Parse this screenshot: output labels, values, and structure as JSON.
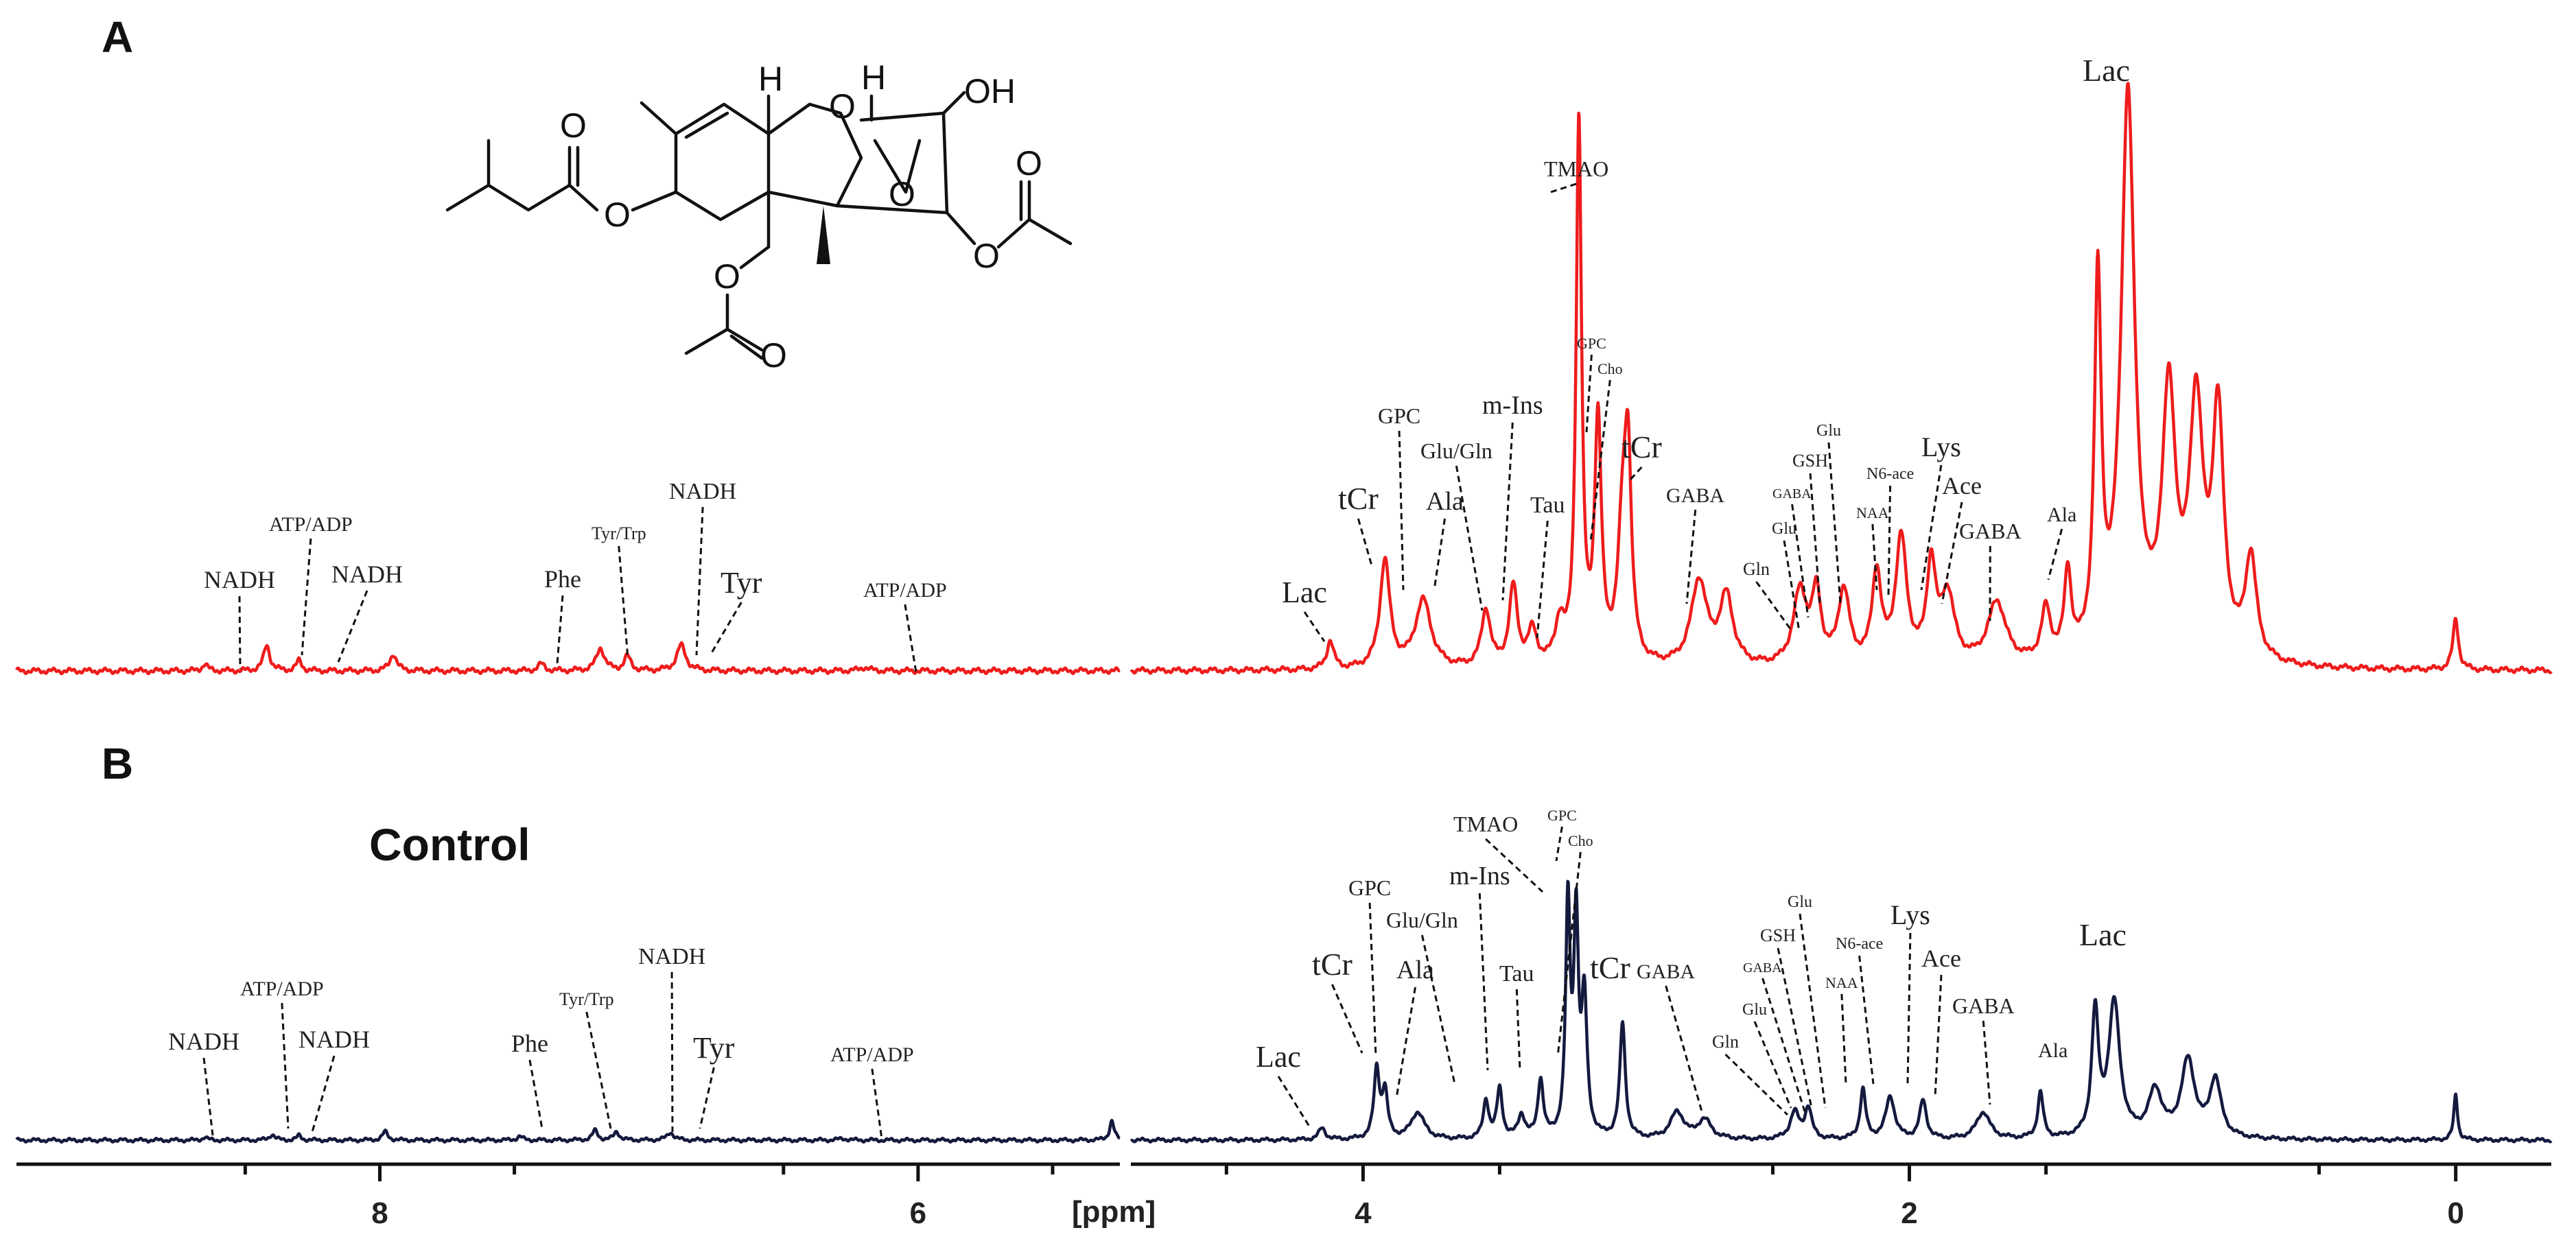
{
  "panels": {
    "a": {
      "letter": "A"
    },
    "b": {
      "letter": "B",
      "title": "Control"
    }
  },
  "structure": {
    "atoms": {
      "oh": "OH",
      "h1": "H",
      "h2": "H",
      "o_ring": "O",
      "o_ester": "O",
      "o_carb": "O",
      "o_epox": "O",
      "o_ac1": "O",
      "o_ac1c": "O",
      "o_ac2": "O",
      "o_ac2c": "O"
    }
  },
  "axis": {
    "unit": "[ppm]",
    "ticks": [
      8,
      6,
      4,
      2,
      0
    ]
  },
  "chart_data": [
    {
      "type": "line",
      "panel": "A",
      "name": "",
      "color": "#ee1c1c",
      "x_reversed": true,
      "x_unit": "ppm",
      "segments": [
        [
          9.35,
          5.25
        ],
        [
          4.85,
          -0.35
        ]
      ],
      "peaks": [
        {
          "x": 8.65,
          "h": 0.012,
          "w": 0.012
        },
        {
          "x": 8.42,
          "h": 0.045,
          "w": 0.014
        },
        {
          "x": 8.3,
          "h": 0.018,
          "w": 0.012
        },
        {
          "x": 7.95,
          "h": 0.03,
          "w": 0.015
        },
        {
          "x": 7.4,
          "h": 0.012,
          "w": 0.015
        },
        {
          "x": 7.18,
          "h": 0.04,
          "w": 0.018
        },
        {
          "x": 7.08,
          "h": 0.025,
          "w": 0.015
        },
        {
          "x": 6.88,
          "h": 0.045,
          "w": 0.02
        },
        {
          "x": 6.2,
          "h": 0.006,
          "w": 0.02
        },
        {
          "x": 4.12,
          "h": 0.05,
          "w": 0.015
        },
        {
          "x": 3.92,
          "h": 0.19,
          "w": 0.022
        },
        {
          "x": 3.78,
          "h": 0.12,
          "w": 0.035
        },
        {
          "x": 3.55,
          "h": 0.1,
          "w": 0.02
        },
        {
          "x": 3.45,
          "h": 0.14,
          "w": 0.018
        },
        {
          "x": 3.38,
          "h": 0.06,
          "w": 0.02
        },
        {
          "x": 3.28,
          "h": 0.07,
          "w": 0.02
        },
        {
          "x": 3.21,
          "h": 0.95,
          "w": 0.012
        },
        {
          "x": 3.14,
          "h": 0.42,
          "w": 0.015
        },
        {
          "x": 3.05,
          "h": 0.22,
          "w": 0.02
        },
        {
          "x": 3.03,
          "h": 0.33,
          "w": 0.015
        },
        {
          "x": 2.77,
          "h": 0.15,
          "w": 0.035
        },
        {
          "x": 2.67,
          "h": 0.12,
          "w": 0.03
        },
        {
          "x": 2.4,
          "h": 0.13,
          "w": 0.03
        },
        {
          "x": 2.34,
          "h": 0.12,
          "w": 0.02
        },
        {
          "x": 2.24,
          "h": 0.13,
          "w": 0.025
        },
        {
          "x": 2.12,
          "h": 0.16,
          "w": 0.02
        },
        {
          "x": 2.03,
          "h": 0.22,
          "w": 0.025
        },
        {
          "x": 1.92,
          "h": 0.17,
          "w": 0.02
        },
        {
          "x": 1.86,
          "h": 0.12,
          "w": 0.03
        },
        {
          "x": 1.68,
          "h": 0.11,
          "w": 0.04
        },
        {
          "x": 1.5,
          "h": 0.09,
          "w": 0.02
        },
        {
          "x": 1.42,
          "h": 0.15,
          "w": 0.015
        },
        {
          "x": 1.31,
          "h": 0.65,
          "w": 0.015
        },
        {
          "x": 1.2,
          "h": 0.99,
          "w": 0.03
        },
        {
          "x": 1.05,
          "h": 0.45,
          "w": 0.03
        },
        {
          "x": 0.95,
          "h": 0.43,
          "w": 0.03
        },
        {
          "x": 0.87,
          "h": 0.42,
          "w": 0.025
        },
        {
          "x": 0.75,
          "h": 0.18,
          "w": 0.025
        },
        {
          "x": 0.0,
          "h": 0.09,
          "w": 0.012
        }
      ]
    },
    {
      "type": "line",
      "panel": "B",
      "name": "Control",
      "color": "#141a3e",
      "x_reversed": true,
      "x_unit": "ppm",
      "segments": [
        [
          9.35,
          5.25
        ],
        [
          4.85,
          -0.35
        ]
      ],
      "peaks": [
        {
          "x": 8.65,
          "h": 0.008,
          "w": 0.01
        },
        {
          "x": 8.4,
          "h": 0.015,
          "w": 0.012
        },
        {
          "x": 8.3,
          "h": 0.012,
          "w": 0.01
        },
        {
          "x": 7.98,
          "h": 0.022,
          "w": 0.012
        },
        {
          "x": 7.48,
          "h": 0.01,
          "w": 0.012
        },
        {
          "x": 7.2,
          "h": 0.025,
          "w": 0.012
        },
        {
          "x": 7.12,
          "h": 0.022,
          "w": 0.012
        },
        {
          "x": 6.92,
          "h": 0.02,
          "w": 0.015
        },
        {
          "x": 6.28,
          "h": 0.004,
          "w": 0.02
        },
        {
          "x": 5.28,
          "h": 0.05,
          "w": 0.01
        },
        {
          "x": 4.15,
          "h": 0.03,
          "w": 0.015
        },
        {
          "x": 3.95,
          "h": 0.18,
          "w": 0.012
        },
        {
          "x": 3.92,
          "h": 0.12,
          "w": 0.012
        },
        {
          "x": 3.8,
          "h": 0.07,
          "w": 0.03
        },
        {
          "x": 3.55,
          "h": 0.1,
          "w": 0.012
        },
        {
          "x": 3.5,
          "h": 0.13,
          "w": 0.012
        },
        {
          "x": 3.42,
          "h": 0.06,
          "w": 0.015
        },
        {
          "x": 3.35,
          "h": 0.15,
          "w": 0.012
        },
        {
          "x": 3.25,
          "h": 0.6,
          "w": 0.01
        },
        {
          "x": 3.22,
          "h": 0.55,
          "w": 0.01
        },
        {
          "x": 3.19,
          "h": 0.35,
          "w": 0.012
        },
        {
          "x": 3.05,
          "h": 0.3,
          "w": 0.012
        },
        {
          "x": 2.85,
          "h": 0.07,
          "w": 0.03
        },
        {
          "x": 2.75,
          "h": 0.05,
          "w": 0.03
        },
        {
          "x": 2.42,
          "h": 0.07,
          "w": 0.02
        },
        {
          "x": 2.37,
          "h": 0.08,
          "w": 0.015
        },
        {
          "x": 2.17,
          "h": 0.13,
          "w": 0.012
        },
        {
          "x": 2.07,
          "h": 0.11,
          "w": 0.02
        },
        {
          "x": 1.95,
          "h": 0.1,
          "w": 0.015
        },
        {
          "x": 1.73,
          "h": 0.07,
          "w": 0.03
        },
        {
          "x": 1.52,
          "h": 0.12,
          "w": 0.012
        },
        {
          "x": 1.32,
          "h": 0.32,
          "w": 0.015
        },
        {
          "x": 1.25,
          "h": 0.35,
          "w": 0.025
        },
        {
          "x": 1.1,
          "h": 0.12,
          "w": 0.03
        },
        {
          "x": 0.98,
          "h": 0.2,
          "w": 0.03
        },
        {
          "x": 0.88,
          "h": 0.15,
          "w": 0.025
        },
        {
          "x": 0.0,
          "h": 0.12,
          "w": 0.008
        }
      ]
    }
  ],
  "labels_a": [
    {
      "id": "lac-4",
      "text": "Lac",
      "ppm": 4.13,
      "size": 44
    },
    {
      "id": "tcr-3.9",
      "text": "tCr",
      "ppm": 3.92,
      "size": 46
    },
    {
      "id": "gpc-3.8",
      "text": "GPC",
      "ppm": 3.79,
      "size": 32
    },
    {
      "id": "ala-3.7",
      "text": "Ala",
      "ppm": 3.72,
      "size": 38
    },
    {
      "id": "glu-gln-3.7",
      "text": "Glu/Gln",
      "ppm": 3.55,
      "size": 32
    },
    {
      "id": "m-ins",
      "text": "m-Ins",
      "ppm": 3.52,
      "size": 38
    },
    {
      "id": "tau",
      "text": "Tau",
      "ppm": 3.35,
      "size": 34
    },
    {
      "id": "tmao",
      "text": "TMAO",
      "ppm": 3.25,
      "size": 32
    },
    {
      "id": "gpc-3.2",
      "text": "GPC",
      "ppm": 3.21,
      "size": 22
    },
    {
      "id": "cho",
      "text": "Cho",
      "ppm": 3.2,
      "size": 22
    },
    {
      "id": "tcr-3.0",
      "text": "tCr",
      "ppm": 3.03,
      "size": 46
    },
    {
      "id": "gaba-2.8",
      "text": "GABA",
      "ppm": 2.8,
      "size": 30
    },
    {
      "id": "gln-2.4",
      "text": "Gln",
      "ppm": 2.45,
      "size": 26
    },
    {
      "id": "glu-2.35",
      "text": "Glu",
      "ppm": 2.38,
      "size": 24
    },
    {
      "id": "gaba-2.3",
      "text": "GABA",
      "ppm": 2.3,
      "size": 20
    },
    {
      "id": "gsh",
      "text": "GSH",
      "ppm": 2.3,
      "size": 26
    },
    {
      "id": "glu-2.1",
      "text": "Glu",
      "ppm": 2.2,
      "size": 24
    },
    {
      "id": "naa",
      "text": "NAA",
      "ppm": 2.03,
      "size": 22
    },
    {
      "id": "n6-ace",
      "text": "N6-ace",
      "ppm": 2.02,
      "size": 24
    },
    {
      "id": "lys",
      "text": "Lys",
      "ppm": 1.92,
      "size": 40
    },
    {
      "id": "ace",
      "text": "Ace",
      "ppm": 1.91,
      "size": 36
    },
    {
      "id": "gaba-1.9",
      "text": "GABA",
      "ppm": 1.68,
      "size": 32
    },
    {
      "id": "ala-1.5",
      "text": "Ala",
      "ppm": 1.43,
      "size": 30
    },
    {
      "id": "lac-1.3",
      "text": "Lac",
      "ppm": 1.2,
      "size": 46
    },
    {
      "id": "nadh-8.65",
      "text": "NADH",
      "ppm": 8.65,
      "size": 36
    },
    {
      "id": "atp-8.4",
      "text": "ATP/ADP",
      "ppm": 8.42,
      "size": 30
    },
    {
      "id": "nadh-8.3",
      "text": "NADH",
      "ppm": 8.3,
      "size": 36
    },
    {
      "id": "phe",
      "text": "Phe",
      "ppm": 7.4,
      "size": 36
    },
    {
      "id": "tyr-trp",
      "text": "Tyr/Trp",
      "ppm": 7.18,
      "size": 26
    },
    {
      "id": "nadh-7.0",
      "text": "NADH",
      "ppm": 6.9,
      "size": 34
    },
    {
      "id": "tyr",
      "text": "Tyr",
      "ppm": 6.88,
      "size": 44
    },
    {
      "id": "atp-6.2",
      "text": "ATP/ADP",
      "ppm": 6.15,
      "size": 30
    }
  ],
  "labels_b": [
    {
      "id": "lac-4",
      "text": "Lac",
      "ppm": 4.15,
      "size": 44
    },
    {
      "id": "tcr-3.9",
      "text": "tCr",
      "ppm": 3.95,
      "size": 46
    },
    {
      "id": "gpc-3.8",
      "text": "GPC",
      "ppm": 3.9,
      "size": 32
    },
    {
      "id": "ala-3.7",
      "text": "Ala",
      "ppm": 3.8,
      "size": 38
    },
    {
      "id": "glu-gln-3.7",
      "text": "Glu/Gln",
      "ppm": 3.55,
      "size": 32
    },
    {
      "id": "m-ins",
      "text": "m-Ins",
      "ppm": 3.5,
      "size": 38
    },
    {
      "id": "tau",
      "text": "Tau",
      "ppm": 3.35,
      "size": 34
    },
    {
      "id": "tmao",
      "text": "TMAO",
      "ppm": 3.25,
      "size": 32
    },
    {
      "id": "gpc-3.2",
      "text": "GPC",
      "ppm": 3.22,
      "size": 22
    },
    {
      "id": "cho",
      "text": "Cho",
      "ppm": 3.19,
      "size": 22
    },
    {
      "id": "tcr-3.0",
      "text": "tCr",
      "ppm": 3.05,
      "size": 46
    },
    {
      "id": "gaba-2.8",
      "text": "GABA",
      "ppm": 2.75,
      "size": 30
    },
    {
      "id": "gln-2.4",
      "text": "Gln",
      "ppm": 2.48,
      "size": 26
    },
    {
      "id": "glu-2.35",
      "text": "Glu",
      "ppm": 2.42,
      "size": 24
    },
    {
      "id": "gaba-2.3",
      "text": "GABA",
      "ppm": 2.4,
      "size": 20
    },
    {
      "id": "gsh",
      "text": "GSH",
      "ppm": 2.37,
      "size": 26
    },
    {
      "id": "glu-2.1",
      "text": "Glu",
      "ppm": 2.3,
      "size": 24
    },
    {
      "id": "naa",
      "text": "NAA",
      "ppm": 2.18,
      "size": 22
    },
    {
      "id": "n6-ace",
      "text": "N6-ace",
      "ppm": 2.07,
      "size": 24
    },
    {
      "id": "lys",
      "text": "Lys",
      "ppm": 2.0,
      "size": 40
    },
    {
      "id": "ace",
      "text": "Ace",
      "ppm": 1.95,
      "size": 36
    },
    {
      "id": "gaba-1.9",
      "text": "GABA",
      "ppm": 1.73,
      "size": 32
    },
    {
      "id": "ala-1.5",
      "text": "Ala",
      "ppm": 1.52,
      "size": 30
    },
    {
      "id": "lac-1.3",
      "text": "Lac",
      "ppm": 1.25,
      "size": 46
    },
    {
      "id": "nadh-8.65",
      "text": "NADH",
      "ppm": 8.65,
      "size": 36
    },
    {
      "id": "atp-8.4",
      "text": "ATP/ADP",
      "ppm": 8.4,
      "size": 30
    },
    {
      "id": "nadh-8.3",
      "text": "NADH",
      "ppm": 8.3,
      "size": 36
    },
    {
      "id": "phe",
      "text": "Phe",
      "ppm": 7.48,
      "size": 36
    },
    {
      "id": "tyr-trp",
      "text": "Tyr/Trp",
      "ppm": 7.2,
      "size": 26
    },
    {
      "id": "nadh-7.0",
      "text": "NADH",
      "ppm": 6.98,
      "size": 34
    },
    {
      "id": "tyr",
      "text": "Tyr",
      "ppm": 6.9,
      "size": 44
    },
    {
      "id": "atp-6.2",
      "text": "ATP/ADP",
      "ppm": 6.28,
      "size": 30
    }
  ]
}
